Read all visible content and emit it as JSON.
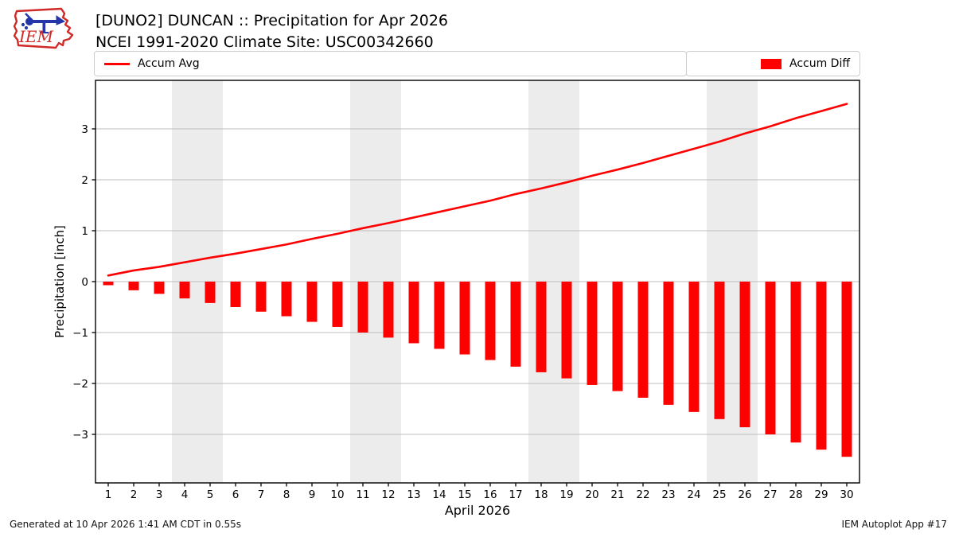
{
  "header": {
    "title_line1": "[DUNO2] DUNCAN :: Precipitation for Apr 2026",
    "title_line2": "NCEI 1991-2020 Climate Site: USC00342660",
    "logo_text": "IEM"
  },
  "legend": {
    "avg_label": "Accum Avg",
    "diff_label": "Accum Diff"
  },
  "footer": {
    "generated": "Generated at 10 Apr 2026 1:41 AM CDT in 0.55s",
    "app": "IEM Autoplot App #17"
  },
  "colors": {
    "series_red": "#ff0000",
    "weekend_band": "#ececec",
    "gridline": "#bdbdbd",
    "axis_frame": "#000000",
    "logo_red": "#cf2a27",
    "logo_blue": "#2436a8"
  },
  "chart_data": {
    "type": "combo",
    "title": "[DUNO2] DUNCAN :: Precipitation for Apr 2026",
    "subtitle": "NCEI 1991-2020 Climate Site: USC00342660",
    "xlabel": "April 2026",
    "ylabel": "Precipitation [inch]",
    "x": [
      1,
      2,
      3,
      4,
      5,
      6,
      7,
      8,
      9,
      10,
      11,
      12,
      13,
      14,
      15,
      16,
      17,
      18,
      19,
      20,
      21,
      22,
      23,
      24,
      25,
      26,
      27,
      28,
      29,
      30
    ],
    "series": [
      {
        "name": "Accum Avg",
        "type": "line",
        "color": "#ff0000",
        "values": [
          0.12,
          0.22,
          0.29,
          0.38,
          0.47,
          0.55,
          0.64,
          0.73,
          0.84,
          0.94,
          1.05,
          1.15,
          1.26,
          1.37,
          1.48,
          1.59,
          1.72,
          1.83,
          1.95,
          2.08,
          2.2,
          2.33,
          2.47,
          2.61,
          2.75,
          2.91,
          3.05,
          3.21,
          3.35,
          3.49
        ]
      },
      {
        "name": "Accum Diff",
        "type": "bar",
        "color": "#ff0000",
        "values": [
          -0.07,
          -0.17,
          -0.24,
          -0.33,
          -0.42,
          -0.5,
          -0.59,
          -0.68,
          -0.79,
          -0.89,
          -1.0,
          -1.1,
          -1.21,
          -1.32,
          -1.43,
          -1.54,
          -1.67,
          -1.78,
          -1.9,
          -2.03,
          -2.15,
          -2.28,
          -2.42,
          -2.56,
          -2.7,
          -2.86,
          -3.0,
          -3.16,
          -3.3,
          -3.44
        ]
      }
    ],
    "ylim": [
      -3.95,
      3.95
    ],
    "yticks": [
      -3,
      -2,
      -1,
      0,
      1,
      2,
      3
    ],
    "ytick_labels": [
      "−3",
      "−2",
      "−1",
      "0",
      "1",
      "2",
      "3"
    ],
    "weekend_bands": [
      [
        4,
        5
      ],
      [
        11,
        12
      ],
      [
        18,
        19
      ],
      [
        25,
        26
      ]
    ],
    "grid": "horizontal only",
    "legend_position": "top strip, avg left / diff right"
  }
}
